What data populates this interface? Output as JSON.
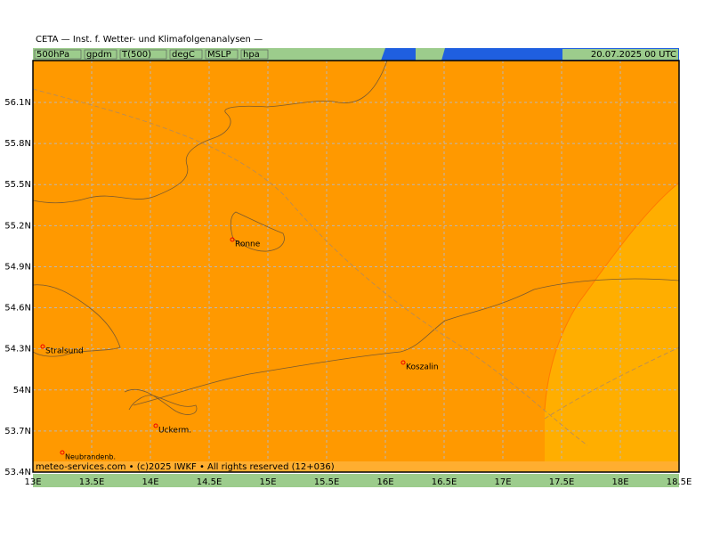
{
  "header": {
    "title": "CETA — Inst. f. Wetter- und Klimafolgenanalysen —",
    "fields": [
      "500hPa",
      "gpdm",
      "T(500)",
      "degC",
      "MSLP",
      "hpa"
    ],
    "date": "20.07.2025 00 UTC"
  },
  "map": {
    "xticks": [
      {
        "value": 13,
        "label": "13E"
      },
      {
        "value": 13.5,
        "label": "13.5E"
      },
      {
        "value": 14,
        "label": "14E"
      },
      {
        "value": 14.5,
        "label": "14.5E"
      },
      {
        "value": 15,
        "label": "15E"
      },
      {
        "value": 15.5,
        "label": "15.5E"
      },
      {
        "value": 16,
        "label": "16E"
      },
      {
        "value": 16.5,
        "label": "16.5E"
      },
      {
        "value": 17,
        "label": "17E"
      },
      {
        "value": 17.5,
        "label": "17.5E"
      },
      {
        "value": 18,
        "label": "18E"
      },
      {
        "value": 18.5,
        "label": "18.5E"
      }
    ],
    "yticks": [
      {
        "value": 53.4,
        "label": "53.4N"
      },
      {
        "value": 53.7,
        "label": "53.7N"
      },
      {
        "value": 54,
        "label": "54N"
      },
      {
        "value": 54.3,
        "label": "54.3N"
      },
      {
        "value": 54.6,
        "label": "54.6N"
      },
      {
        "value": 54.9,
        "label": "54.9N"
      },
      {
        "value": 55.2,
        "label": "55.2N"
      },
      {
        "value": 55.5,
        "label": "55.5N"
      },
      {
        "value": 55.8,
        "label": "55.8N"
      },
      {
        "value": 56.1,
        "label": "56.1N"
      }
    ],
    "cities": [
      "Ronne",
      "Stralsund",
      "Koszalin",
      "Uckerm.",
      "Neubrandenb."
    ]
  },
  "footer": {
    "copyright": "meteo-services.com • (c)2025 IWKF • All rights reserved (12+036)"
  }
}
